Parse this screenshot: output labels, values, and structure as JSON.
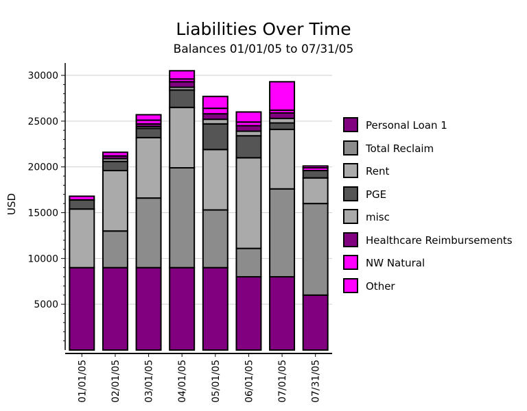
{
  "chart_data": {
    "type": "stacked-bar",
    "title": "Liabilities Over Time",
    "subtitle": "Balances 01/01/05 to 07/31/05",
    "ylabel": "USD",
    "xlabel": "",
    "ylim": [
      0,
      30000
    ],
    "yticks": [
      5000,
      10000,
      15000,
      20000,
      25000,
      30000
    ],
    "ytick_labels": [
      "5000",
      "10000",
      "15000",
      "20000",
      "25000",
      "30000"
    ],
    "grid": true,
    "legend_position": "right",
    "categories": [
      "01/01/05",
      "02/01/05",
      "03/01/05",
      "04/01/05",
      "05/01/05",
      "06/01/05",
      "07/01/05",
      "07/31/05"
    ],
    "series": [
      {
        "name": "Personal Loan 1",
        "color": "#800080",
        "values": [
          9000,
          9000,
          9000,
          9000,
          9000,
          8000,
          8000,
          6000
        ]
      },
      {
        "name": "Total Reclaim",
        "color": "#8c8c8c",
        "values": [
          0,
          4000,
          7600,
          10900,
          6300,
          3100,
          9600,
          10000
        ]
      },
      {
        "name": "Rent",
        "color": "#aaaaaa",
        "values": [
          6400,
          6600,
          6600,
          6600,
          6600,
          9900,
          6500,
          2800
        ]
      },
      {
        "name": "PGE",
        "color": "#555555",
        "values": [
          1000,
          1000,
          1000,
          1900,
          2800,
          2400,
          700,
          800
        ]
      },
      {
        "name": "misc",
        "color": "#aaaaaa",
        "values": [
          0,
          300,
          200,
          300,
          500,
          500,
          500,
          0
        ]
      },
      {
        "name": "Healthcare Reimbursements",
        "color": "#800080",
        "values": [
          0,
          300,
          300,
          600,
          600,
          600,
          600,
          0
        ]
      },
      {
        "name": "NW Natural",
        "color": "#ff00ff",
        "values": [
          400,
          400,
          400,
          300,
          600,
          400,
          300,
          300
        ]
      },
      {
        "name": "Other",
        "color": "#ff00ff",
        "values": [
          0,
          0,
          600,
          900,
          1300,
          1100,
          3100,
          200
        ]
      }
    ]
  }
}
